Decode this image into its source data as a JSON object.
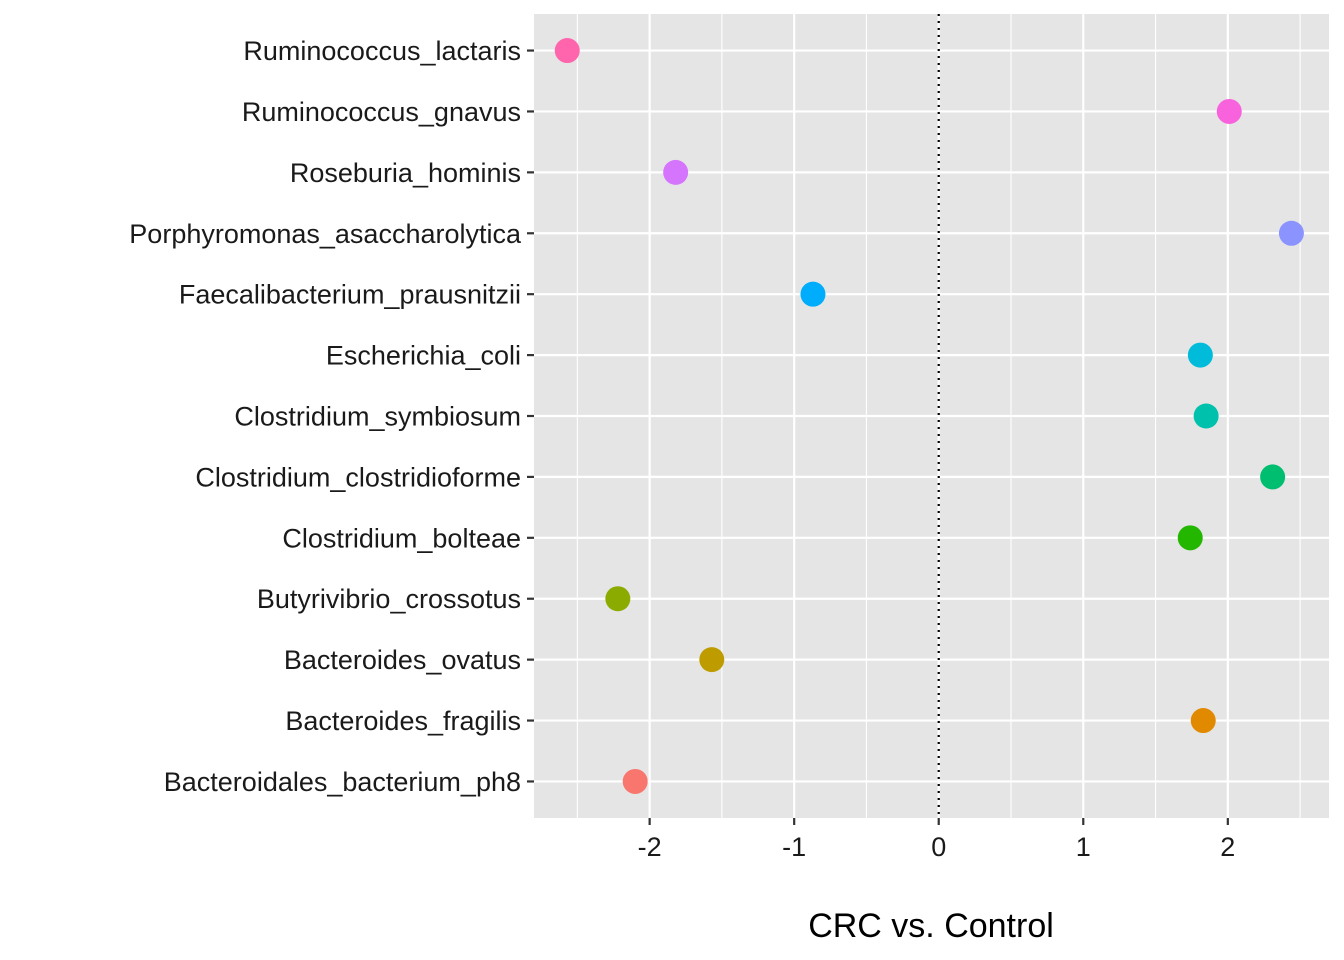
{
  "chart_data": {
    "type": "scatter",
    "title": "",
    "xlabel": "CRC vs. Control",
    "ylabel": "",
    "xlim": [
      -2.8,
      2.7
    ],
    "x_ticks": [
      -2,
      -1,
      0,
      1,
      2
    ],
    "x_tick_labels": [
      "-2",
      "-1",
      "0",
      "1",
      "2"
    ],
    "reference_line": {
      "x": 0,
      "style": "dotted"
    },
    "grid": true,
    "legend": "none",
    "panel_background": "#E5E5E5",
    "grid_color": "#FFFFFF",
    "categories": [
      "Bacteroidales_bacterium_ph8",
      "Bacteroides_fragilis",
      "Bacteroides_ovatus",
      "Butyrivibrio_crossotus",
      "Clostridium_bolteae",
      "Clostridium_clostridioforme",
      "Clostridium_symbiosum",
      "Escherichia_coli",
      "Faecalibacterium_prausnitzii",
      "Porphyromonas_asaccharolytica",
      "Roseburia_hominis",
      "Ruminococcus_gnavus",
      "Ruminococcus_lactaris"
    ],
    "values": [
      -2.1,
      1.83,
      -1.57,
      -2.22,
      1.74,
      2.31,
      1.85,
      1.81,
      -0.87,
      2.44,
      -1.82,
      2.01,
      -2.57
    ],
    "colors": [
      "#F8766D",
      "#E18A00",
      "#BE9C00",
      "#8CAB00",
      "#24B700",
      "#00BE70",
      "#00C1AB",
      "#00BBDA",
      "#00ACFC",
      "#8B93FF",
      "#D575FE",
      "#F962DD",
      "#FF65AC"
    ]
  }
}
